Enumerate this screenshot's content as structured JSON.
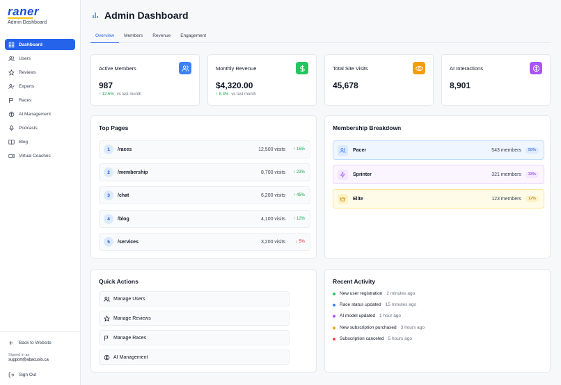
{
  "app": {
    "logo": "raner",
    "subtitle": "Admin Dashboard"
  },
  "sidebar": {
    "items": [
      {
        "label": "Dashboard",
        "icon": "dashboard-icon",
        "active": true
      },
      {
        "label": "Users",
        "icon": "users-icon"
      },
      {
        "label": "Reviews",
        "icon": "star-icon"
      },
      {
        "label": "Experts",
        "icon": "user-check-icon"
      },
      {
        "label": "Races",
        "icon": "flag-icon"
      },
      {
        "label": "AI Management",
        "icon": "brain-icon"
      },
      {
        "label": "Podcasts",
        "icon": "microphone-icon"
      },
      {
        "label": "Blog",
        "icon": "book-icon"
      },
      {
        "label": "Virtual Coaches",
        "icon": "video-icon"
      }
    ],
    "back_label": "Back to Website",
    "signed_in_label": "Signed in as:",
    "signed_in_email": "support@abacusis.ca",
    "sign_out_label": "Sign Out"
  },
  "header": {
    "title": "Admin Dashboard",
    "icon": "bar-chart-icon"
  },
  "tabs": [
    {
      "label": "Overview",
      "active": true
    },
    {
      "label": "Members"
    },
    {
      "label": "Revenue"
    },
    {
      "label": "Engagement"
    }
  ],
  "stats": [
    {
      "label": "Active Members",
      "value": "987",
      "change": "12.5%",
      "change_note": "vs last month",
      "icon": "users-icon",
      "icon_color": "#3b82f6"
    },
    {
      "label": "Monthly Revenue",
      "value": "$4,320.00",
      "change": "8.3%",
      "change_note": "vs last month",
      "icon": "dollar-icon",
      "icon_color": "#22c55e"
    },
    {
      "label": "Total Site Visits",
      "value": "45,678",
      "icon": "eye-icon",
      "icon_color": "#f59e0b"
    },
    {
      "label": "AI Interactions",
      "value": "8,901",
      "icon": "brain-icon",
      "icon_color": "#a855f7"
    }
  ],
  "top_pages": {
    "title": "Top Pages",
    "rows": [
      {
        "rank": "1",
        "path": "/races",
        "visits": "12,500 visits",
        "change": "15%",
        "direction": "up"
      },
      {
        "rank": "2",
        "path": "/membership",
        "visits": "8,700 visits",
        "change": "23%",
        "direction": "up"
      },
      {
        "rank": "3",
        "path": "/chat",
        "visits": "6,200 visits",
        "change": "45%",
        "direction": "up"
      },
      {
        "rank": "4",
        "path": "/blog",
        "visits": "4,100 visits",
        "change": "12%",
        "direction": "up"
      },
      {
        "rank": "5",
        "path": "/services",
        "visits": "3,200 visits",
        "change": "5%",
        "direction": "down"
      }
    ]
  },
  "membership": {
    "title": "Membership Breakdown",
    "rows": [
      {
        "name": "Pacer",
        "count": "543 members",
        "pct": "55%",
        "icon": "users-icon",
        "bg": "#eff6ff",
        "border": "#bfdbfe",
        "accent": "#3b82f6",
        "icon_bg": "#dbeafe",
        "pct_bg": "#dbeafe"
      },
      {
        "name": "Sprinter",
        "count": "321 members",
        "pct": "33%",
        "icon": "lightning-icon",
        "bg": "#faf5ff",
        "border": "#e9d5ff",
        "accent": "#a855f7",
        "icon_bg": "#f3e8ff",
        "pct_bg": "#f3e8ff"
      },
      {
        "name": "Elite",
        "count": "123 members",
        "pct": "12%",
        "icon": "crown-icon",
        "bg": "#fefce8",
        "border": "#fde68a",
        "accent": "#ca8a04",
        "icon_bg": "#fef3c7",
        "pct_bg": "#fef3c7"
      }
    ]
  },
  "quick_actions": {
    "title": "Quick Actions",
    "items": [
      {
        "label": "Manage Users",
        "icon": "users-icon"
      },
      {
        "label": "Manage Reviews",
        "icon": "star-icon"
      },
      {
        "label": "Manage Races",
        "icon": "flag-icon"
      },
      {
        "label": "AI Management",
        "icon": "brain-icon"
      }
    ]
  },
  "recent_activity": {
    "title": "Recent Activity",
    "items": [
      {
        "text": "New user registration",
        "time": "2 minutes ago",
        "color": "#22c55e"
      },
      {
        "text": "Race status updated",
        "time": "15 minutes ago",
        "color": "#3b82f6"
      },
      {
        "text": "AI model updated",
        "time": "1 hour ago",
        "color": "#a855f7"
      },
      {
        "text": "New subscription purchased",
        "time": "3 hours ago",
        "color": "#f59e0b"
      },
      {
        "text": "Subscription canceled",
        "time": "5 hours ago",
        "color": "#ef4444"
      }
    ]
  }
}
